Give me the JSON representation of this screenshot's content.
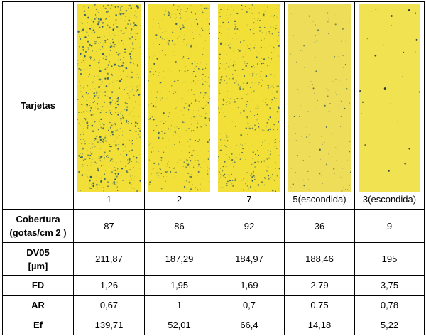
{
  "table": {
    "row_labels": {
      "cards": "Tarjetas",
      "coverage_line1": "Cobertura",
      "coverage_line2": "(gotas/cm 2 )",
      "dv05_line1": "DV05",
      "dv05_line2": "[µm]",
      "fd": "FD",
      "ar": "AR",
      "ef": "Ef"
    },
    "columns": [
      {
        "card_label": "1",
        "coverage": "87",
        "dv05": "211,87",
        "fd": "1,26",
        "ar": "0,67",
        "ef": "139,71",
        "density": "high",
        "card_color": "#f2e038",
        "drop_color": "#2f5a6a"
      },
      {
        "card_label": "2",
        "coverage": "86",
        "dv05": "187,29",
        "fd": "1,95",
        "ar": "1",
        "ef": "52,01",
        "density": "medium",
        "card_color": "#f2e038",
        "drop_color": "#3a5f5c"
      },
      {
        "card_label": "7",
        "coverage": "92",
        "dv05": "184,97",
        "fd": "1,69",
        "ar": "0,7",
        "ef": "66,4",
        "density": "medium-high",
        "card_color": "#f2e038",
        "drop_color": "#3a5f5c"
      },
      {
        "card_label": "5(escondida)",
        "coverage": "36",
        "dv05": "188,46",
        "fd": "2,79",
        "ar": "0,75",
        "ef": "14,18",
        "density": "low",
        "card_color": "#eddd59",
        "drop_color": "#3c5a55"
      },
      {
        "card_label": "3(escondida)",
        "coverage": "9",
        "dv05": "195",
        "fd": "3,75",
        "ar": "0,78",
        "ef": "5,22",
        "density": "very-low",
        "card_color": "#f1e252",
        "drop_color": "#22313a"
      }
    ]
  }
}
